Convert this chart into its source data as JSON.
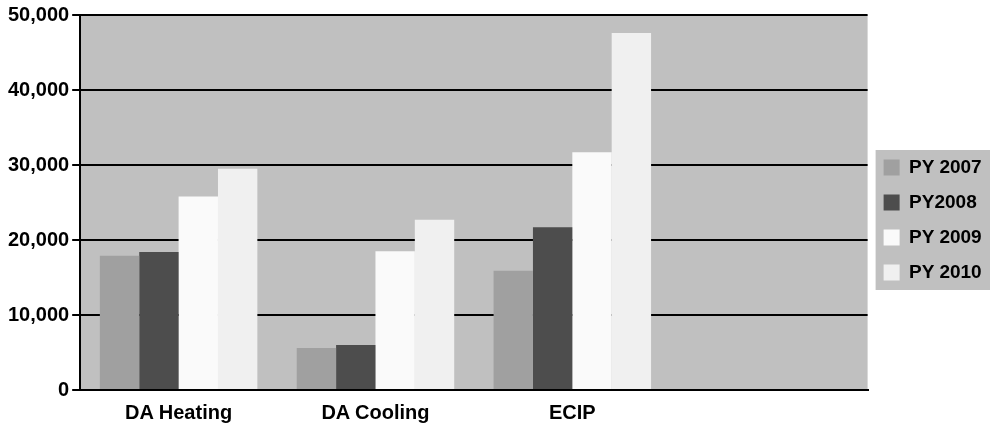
{
  "chart_data": {
    "type": "bar",
    "categories": [
      "DA Heating",
      "DA Cooling",
      "ECIP",
      null
    ],
    "series": [
      {
        "name": "PY 2007",
        "color": "#a0a0a0",
        "values": [
          17900,
          5600,
          15900,
          null
        ]
      },
      {
        "name": "PY2008",
        "color": "#4d4d4d",
        "values": [
          18400,
          6000,
          21700,
          null
        ]
      },
      {
        "name": "PY 2009",
        "color": "#fafafa",
        "values": [
          25800,
          18500,
          31700,
          null
        ]
      },
      {
        "name": "PY 2010",
        "color": "#f0f0f0",
        "values": [
          29500,
          22700,
          47600,
          null
        ]
      }
    ],
    "ylim": [
      0,
      50000
    ],
    "yticks": [
      0,
      {
        "value": 10000,
        "label": "10,000"
      },
      {
        "value": 20000,
        "label": "20,000"
      },
      {
        "value": 30000,
        "label": "30,000"
      },
      {
        "value": 40000,
        "label": "40,000"
      },
      {
        "value": 50000,
        "label": "50,000"
      }
    ],
    "grid": "y",
    "legend": "right"
  }
}
